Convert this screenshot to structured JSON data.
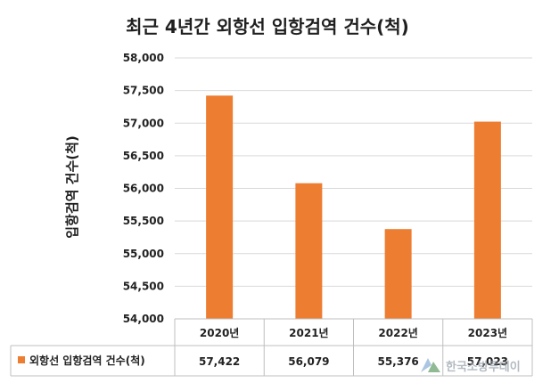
{
  "chart_data": {
    "type": "bar",
    "title": "최근 4년간 외항선 입항검역 건수(척)",
    "ylabel": "입항검역 건수(척)",
    "xlabel": "",
    "categories": [
      "2020년",
      "2021년",
      "2022년",
      "2023년"
    ],
    "series": [
      {
        "name": "외항선 입항검역 건수(척)",
        "values": [
          57422,
          56079,
          55376,
          57023
        ],
        "value_labels": [
          "57,422",
          "56,079",
          "55,376",
          "57,023"
        ],
        "color": "#ed7d31"
      }
    ],
    "ylim": [
      54000,
      58000
    ],
    "yticks": [
      54000,
      54500,
      55000,
      55500,
      56000,
      56500,
      57000,
      57500,
      58000
    ],
    "ytick_labels": [
      "54,000",
      "54,500",
      "55,000",
      "55,500",
      "56,000",
      "56,500",
      "57,000",
      "57,500",
      "58,000"
    ],
    "grid": true,
    "legend": "bottom-table"
  },
  "watermark": {
    "text": "한국소방투데이",
    "icon": "logo-mark-icon"
  }
}
